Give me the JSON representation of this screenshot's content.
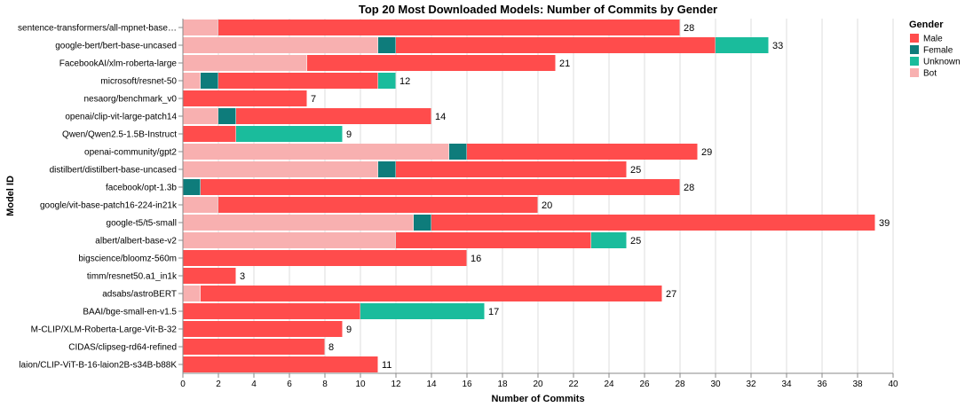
{
  "chart_data": {
    "type": "bar",
    "orientation": "horizontal",
    "stacked": true,
    "title": "Top 20 Most Downloaded Models: Number of Commits by Gender",
    "xlabel": "Number of Commits",
    "ylabel": "Model ID",
    "xlim": [
      0,
      40
    ],
    "xticks": [
      "0",
      "2",
      "4",
      "6",
      "8",
      "10",
      "12",
      "14",
      "16",
      "18",
      "20",
      "22",
      "24",
      "26",
      "28",
      "30",
      "32",
      "34",
      "36",
      "38",
      "40"
    ],
    "grid": true,
    "legend": {
      "title": "Gender",
      "position": "right"
    },
    "categories": [
      "sentence-transformers/all-mpnet-base…",
      "google-bert/bert-base-uncased",
      "FacebookAI/xlm-roberta-large",
      "microsoft/resnet-50",
      "nesaorg/benchmark_v0",
      "openai/clip-vit-large-patch14",
      "Qwen/Qwen2.5-1.5B-Instruct",
      "openai-community/gpt2",
      "distilbert/distilbert-base-uncased",
      "facebook/opt-1.3b",
      "google/vit-base-patch16-224-in21k",
      "google-t5/t5-small",
      "albert/albert-base-v2",
      "bigscience/bloomz-560m",
      "timm/resnet50.a1_in1k",
      "adsabs/astroBERT",
      "BAAI/bge-small-en-v1.5",
      "M-CLIP/XLM-Roberta-Large-Vit-B-32",
      "CIDAS/clipseg-rd64-refined",
      "laion/CLIP-ViT-B-16-laion2B-s34B-b88K"
    ],
    "stack_order": [
      "Bot",
      "Female",
      "Male",
      "Unknown"
    ],
    "series": [
      {
        "name": "Male",
        "color": "#ff4c4c",
        "values": [
          26,
          18,
          14,
          9,
          7,
          11,
          3,
          13,
          13,
          27,
          18,
          25,
          11,
          16,
          3,
          26,
          10,
          9,
          8,
          11
        ]
      },
      {
        "name": "Female",
        "color": "#0e7c7b",
        "values": [
          0,
          1,
          0,
          1,
          0,
          1,
          0,
          1,
          1,
          1,
          0,
          1,
          0,
          0,
          0,
          0,
          0,
          0,
          0,
          0
        ]
      },
      {
        "name": "Unknown",
        "color": "#1abc9c",
        "values": [
          0,
          3,
          0,
          1,
          0,
          0,
          6,
          0,
          0,
          0,
          0,
          0,
          2,
          0,
          0,
          0,
          7,
          0,
          0,
          0
        ]
      },
      {
        "name": "Bot",
        "color": "#f8b0b0",
        "values": [
          2,
          11,
          7,
          1,
          0,
          2,
          0,
          15,
          11,
          0,
          2,
          13,
          12,
          0,
          0,
          1,
          0,
          0,
          0,
          0
        ]
      }
    ],
    "totals": [
      28,
      33,
      21,
      12,
      7,
      14,
      9,
      29,
      25,
      28,
      20,
      39,
      25,
      16,
      3,
      27,
      17,
      9,
      8,
      11
    ]
  }
}
